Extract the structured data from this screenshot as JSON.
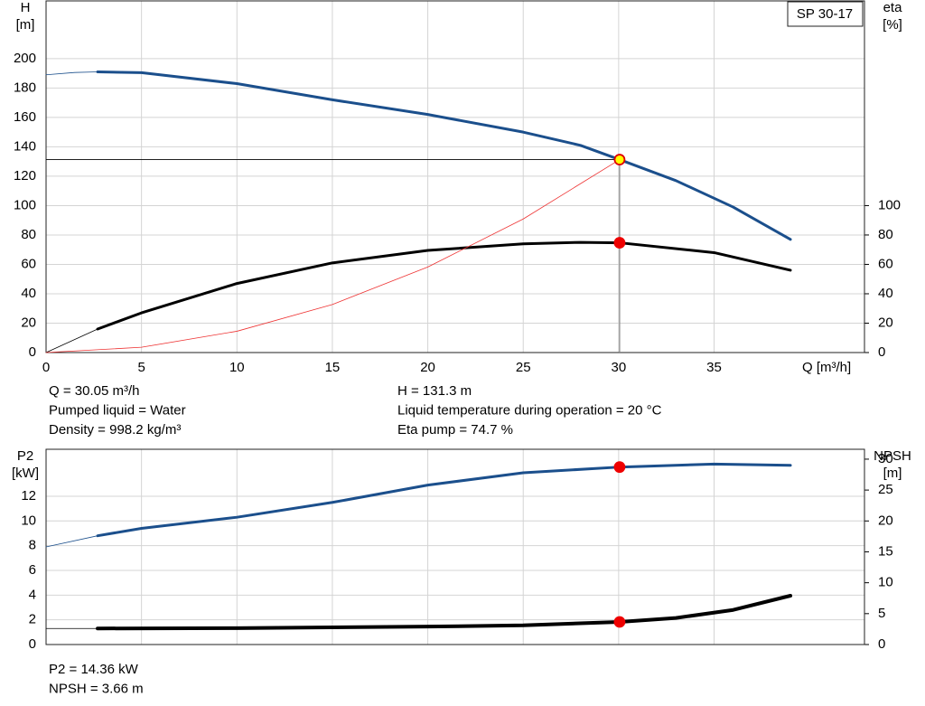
{
  "chart_data": [
    {
      "type": "line",
      "title": "SP 30-17",
      "ylabel": "H",
      "yunit": "[m]",
      "y2label": "eta",
      "y2unit": "[%]",
      "xlabel": "Q [m³/h]",
      "xlim": [
        0,
        42.88
      ],
      "xticks": [
        0,
        5,
        10,
        15,
        20,
        25,
        30,
        35
      ],
      "show_xtick_labels": true,
      "ylim": [
        0,
        239.3
      ],
      "yticks": [
        0,
        20,
        40,
        60,
        80,
        100,
        120,
        140,
        160,
        180,
        200
      ],
      "y2lim": [
        0,
        239.3
      ],
      "y2ticks": [
        0,
        20,
        40,
        60,
        80,
        100
      ],
      "grid": true,
      "series": [
        {
          "axis": "y",
          "color": "#1b4f8c",
          "style": "thin",
          "x": [
            0,
            1.5,
            2.7
          ],
          "values": [
            189,
            190.6,
            191
          ]
        },
        {
          "axis": "y",
          "color": "#1b4f8c",
          "style": "bold",
          "x": [
            2.7,
            5,
            10,
            15,
            20,
            25,
            28,
            30.05,
            33,
            36,
            39
          ],
          "values": [
            191,
            190.5,
            183,
            172,
            162,
            150,
            141,
            131.3,
            117,
            99,
            77
          ]
        },
        {
          "axis": "y2",
          "color": "#000000",
          "style": "thin",
          "x": [
            0,
            2.7
          ],
          "values": [
            0,
            16
          ]
        },
        {
          "axis": "y2",
          "color": "#000000",
          "style": "bold",
          "x": [
            2.7,
            5,
            10,
            15,
            20,
            25,
            28,
            30.05,
            35,
            39
          ],
          "values": [
            16,
            27,
            47,
            61,
            69.5,
            74,
            75,
            74.7,
            68,
            56
          ]
        },
        {
          "axis": "y",
          "color": "#ee3333",
          "style": "hair",
          "x": [
            0,
            5,
            10,
            15,
            20,
            25,
            30.05
          ],
          "values": [
            0,
            3.6,
            14.5,
            32.7,
            58.2,
            90.9,
            131.3
          ]
        }
      ],
      "markers": [
        {
          "axis": "y",
          "x": 30.05,
          "y": 131.3,
          "color": "#ffff00",
          "edgecolor": "#e00000",
          "crosshair": true
        },
        {
          "axis": "y2",
          "x": 30.05,
          "y": 74.7,
          "color": "#ee0000",
          "edgecolor": "#ee0000",
          "crosshair": false
        }
      ],
      "notes_left": [
        "Q = 30.05 m³/h",
        "Pumped liquid = Water",
        "Density = 998.2 kg/m³"
      ],
      "notes_right": [
        "H = 131.3 m",
        "Liquid temperature during operation = 20 °C",
        "Eta pump = 74.7 %"
      ]
    },
    {
      "type": "line",
      "ylabel": "P2",
      "yunit": "[kW]",
      "y2label": "NPSH",
      "y2unit": "[m]",
      "xlim": [
        0,
        42.88
      ],
      "xticks": [
        0,
        5,
        10,
        15,
        20,
        25,
        30,
        35
      ],
      "show_xtick_labels": false,
      "ylim": [
        0,
        15.8
      ],
      "yticks": [
        0,
        2,
        4,
        6,
        8,
        10,
        12
      ],
      "y2lim": [
        0,
        31.6
      ],
      "y2ticks": [
        0,
        5,
        10,
        15,
        20,
        25,
        30
      ],
      "grid": true,
      "series": [
        {
          "axis": "y",
          "color": "#1b4f8c",
          "style": "thin",
          "x": [
            0,
            2.7
          ],
          "values": [
            7.9,
            8.8
          ]
        },
        {
          "axis": "y",
          "color": "#1b4f8c",
          "style": "bold",
          "x": [
            2.7,
            5,
            10,
            15,
            20,
            25,
            30.05,
            35,
            39
          ],
          "values": [
            8.8,
            9.4,
            10.3,
            11.5,
            12.9,
            13.9,
            14.36,
            14.6,
            14.5
          ]
        },
        {
          "axis": "y2",
          "color": "#000000",
          "style": "thin",
          "x": [
            0,
            2.7
          ],
          "values": [
            2.6,
            2.6
          ]
        },
        {
          "axis": "y2",
          "color": "#000000",
          "style": "heavy",
          "x": [
            2.7,
            10,
            20,
            25,
            30.05,
            33,
            36,
            39
          ],
          "values": [
            2.6,
            2.65,
            2.9,
            3.1,
            3.66,
            4.3,
            5.6,
            7.9
          ]
        }
      ],
      "markers": [
        {
          "axis": "y",
          "x": 30.05,
          "y": 14.36,
          "color": "#ee0000",
          "edgecolor": "#ee0000",
          "crosshair": false
        },
        {
          "axis": "y2",
          "x": 30.05,
          "y": 3.66,
          "color": "#ee0000",
          "edgecolor": "#ee0000",
          "crosshair": false
        }
      ],
      "notes_left": [
        "P2 = 14.36 kW",
        "NPSH = 3.66 m"
      ],
      "notes_right": []
    }
  ]
}
